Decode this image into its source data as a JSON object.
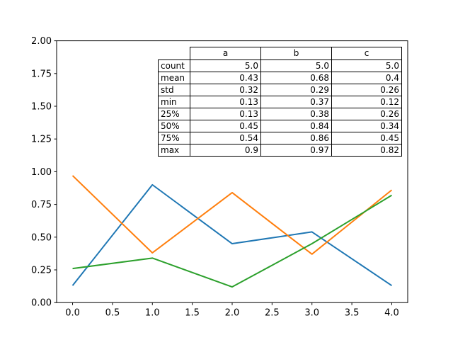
{
  "chart_data": {
    "type": "line",
    "title": "",
    "xlabel": "",
    "ylabel": "",
    "grid": false,
    "legend_position": "none",
    "x": [
      0,
      1,
      2,
      3,
      4
    ],
    "series": [
      {
        "name": "a",
        "color": "#1f77b4",
        "values": [
          0.13,
          0.9,
          0.45,
          0.54,
          0.13
        ]
      },
      {
        "name": "b",
        "color": "#ff7f0e",
        "values": [
          0.97,
          0.38,
          0.84,
          0.37,
          0.86
        ]
      },
      {
        "name": "c",
        "color": "#2ca02c",
        "values": [
          0.26,
          0.34,
          0.12,
          0.45,
          0.82
        ]
      }
    ],
    "xlim": [
      -0.2,
      4.2
    ],
    "ylim": [
      0,
      2
    ],
    "xticks": [
      "0.0",
      "0.5",
      "1.0",
      "1.5",
      "2.0",
      "2.5",
      "3.0",
      "3.5",
      "4.0"
    ],
    "yticks": [
      "0.00",
      "0.25",
      "0.50",
      "0.75",
      "1.00",
      "1.25",
      "1.50",
      "1.75",
      "2.00"
    ],
    "axis_color": "#000000"
  },
  "stats_table": {
    "columns": [
      "a",
      "b",
      "c"
    ],
    "rows": [
      {
        "label": "count",
        "values": [
          "5.0",
          "5.0",
          "5.0"
        ]
      },
      {
        "label": "mean",
        "values": [
          "0.43",
          "0.68",
          "0.4"
        ]
      },
      {
        "label": "std",
        "values": [
          "0.32",
          "0.29",
          "0.26"
        ]
      },
      {
        "label": "min",
        "values": [
          "0.13",
          "0.37",
          "0.12"
        ]
      },
      {
        "label": "25%",
        "values": [
          "0.13",
          "0.38",
          "0.26"
        ]
      },
      {
        "label": "50%",
        "values": [
          "0.45",
          "0.84",
          "0.34"
        ]
      },
      {
        "label": "75%",
        "values": [
          "0.54",
          "0.86",
          "0.45"
        ]
      },
      {
        "label": "max",
        "values": [
          "0.9",
          "0.97",
          "0.82"
        ]
      }
    ]
  }
}
